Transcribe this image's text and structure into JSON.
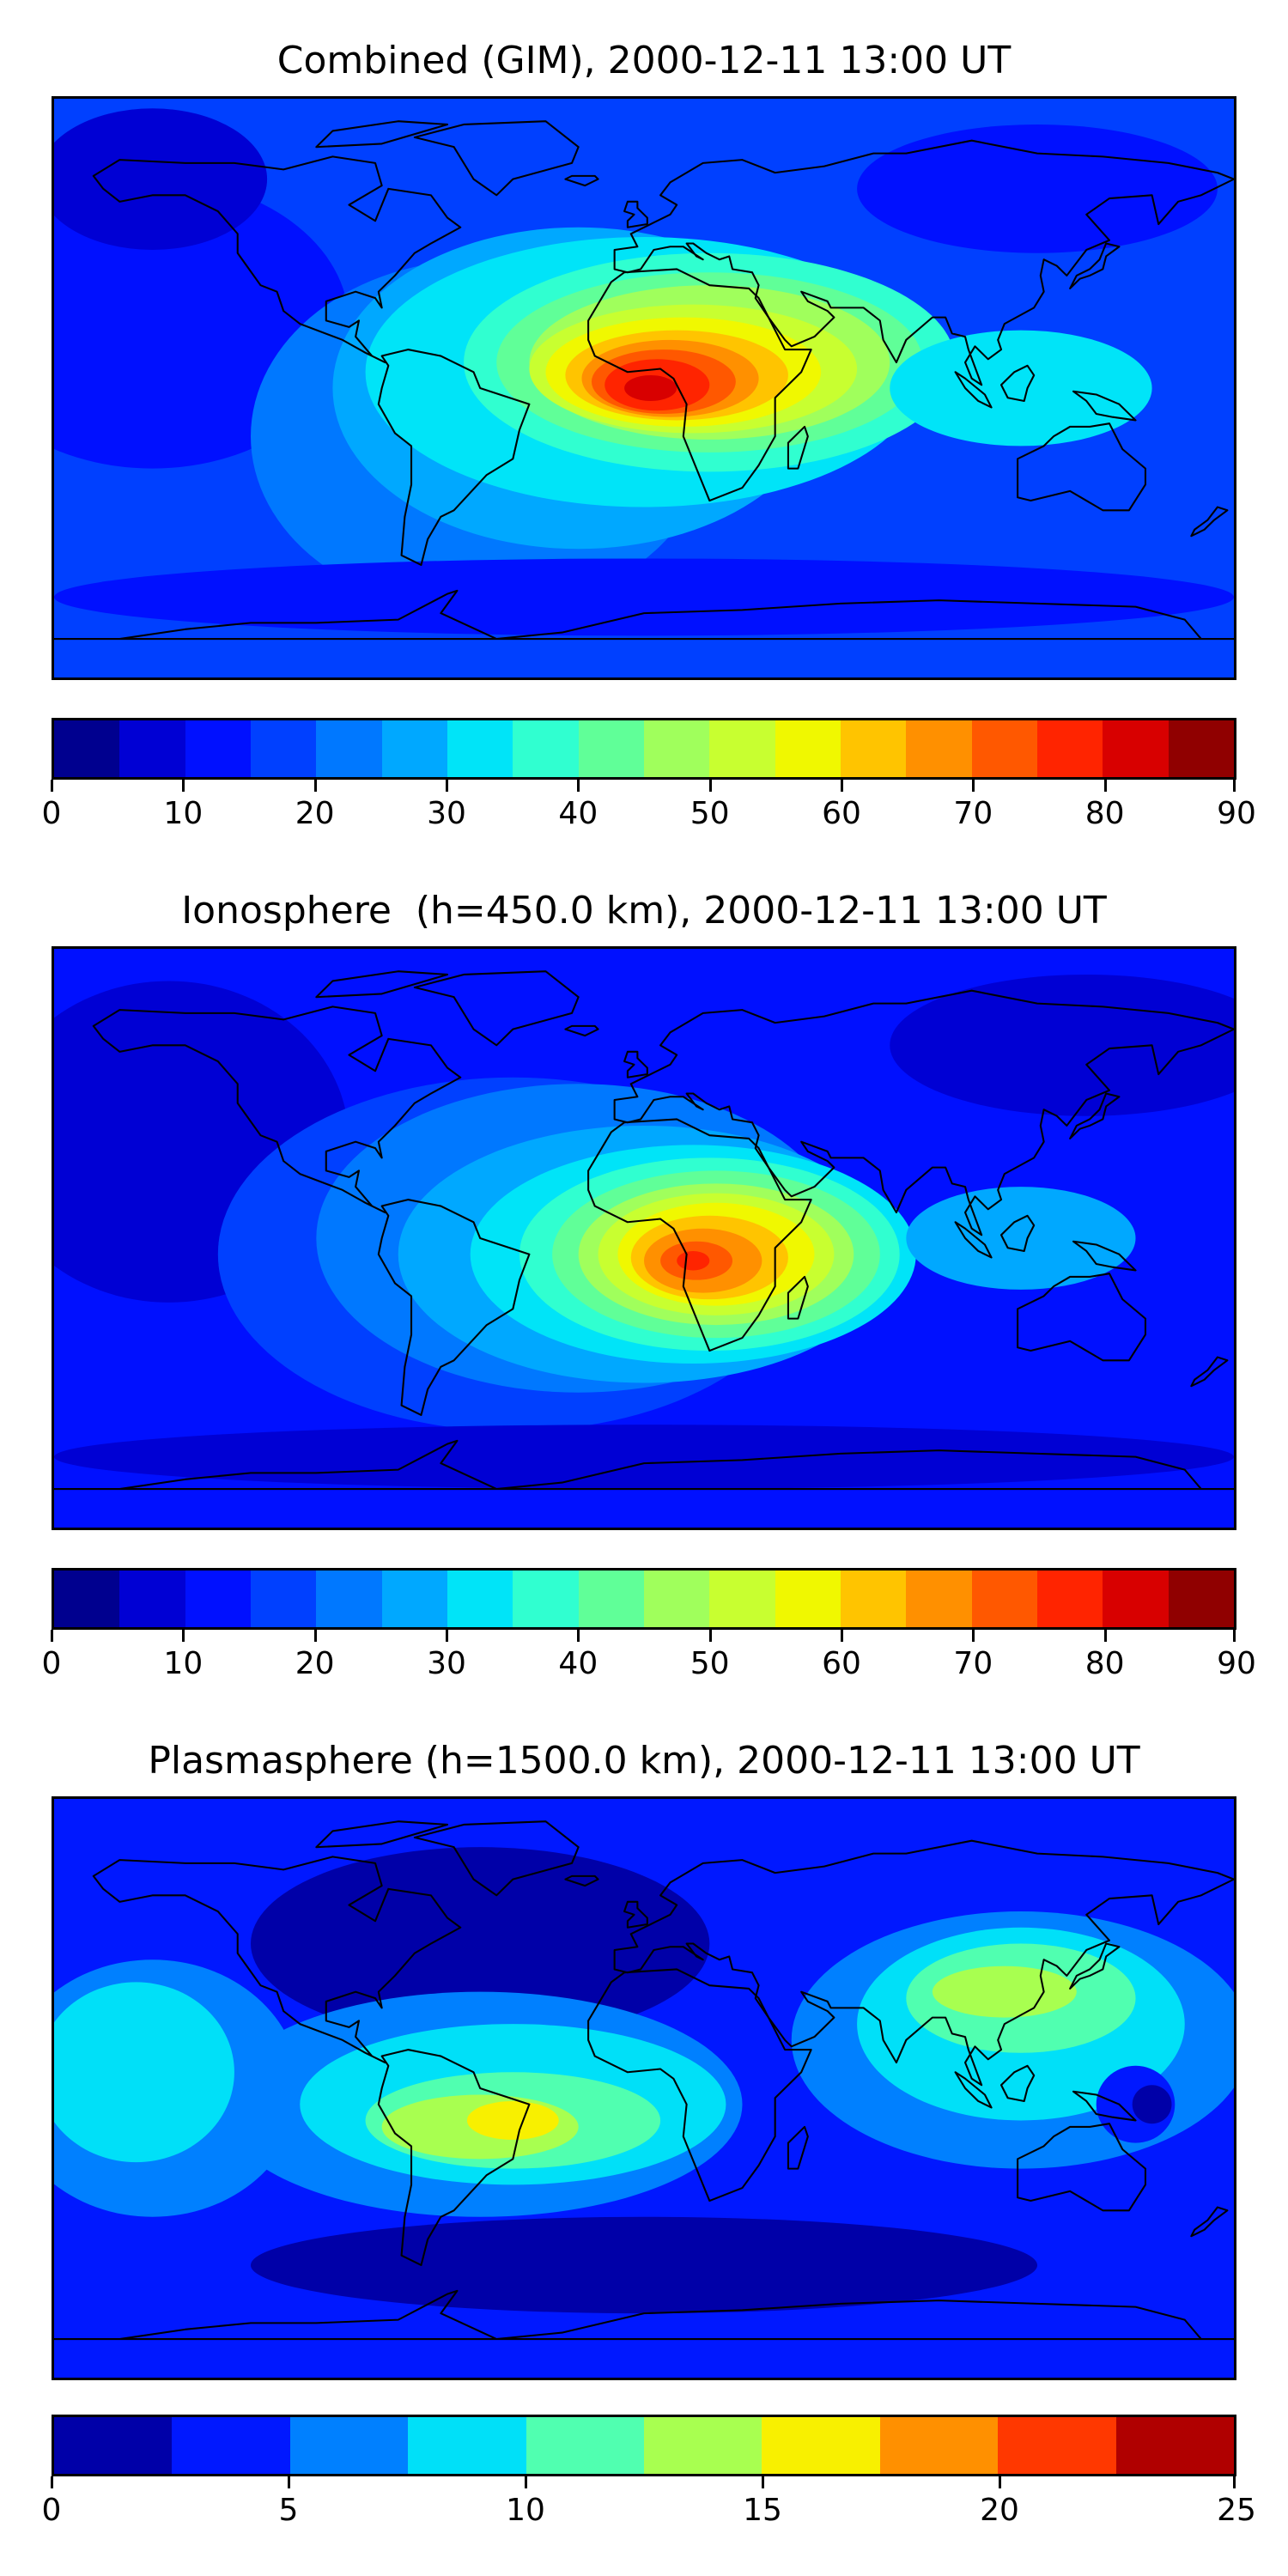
{
  "panels": [
    {
      "title": "Combined (GIM), 2000-12-11 13:00 UT",
      "colorbar": {
        "min": 0,
        "max": 90,
        "ticks": [
          "0",
          "10",
          "20",
          "30",
          "40",
          "50",
          "60",
          "70",
          "80",
          "90"
        ],
        "colors": [
          "#00008f",
          "#0000d4",
          "#0010ff",
          "#0040ff",
          "#0078ff",
          "#00a8ff",
          "#00e4f8",
          "#30ffd0",
          "#60ff98",
          "#a0ff5c",
          "#c8ff30",
          "#f0f800",
          "#ffc400",
          "#ff9000",
          "#ff5800",
          "#ff2400",
          "#d80000",
          "#900000"
        ]
      },
      "field": {
        "background_level": 3,
        "blobs": [
          {
            "level": 2,
            "lon": -150,
            "lat": 20,
            "rx": 60,
            "ry": 45
          },
          {
            "level": 1,
            "lon": -150,
            "lat": 65,
            "rx": 35,
            "ry": 22
          },
          {
            "level": 2,
            "lon": 120,
            "lat": 62,
            "rx": 55,
            "ry": 20
          },
          {
            "level": 4,
            "lon": -50,
            "lat": -15,
            "rx": 70,
            "ry": 55
          },
          {
            "level": 5,
            "lon": -20,
            "lat": 0,
            "rx": 75,
            "ry": 50
          },
          {
            "level": 6,
            "lon": 0,
            "lat": 5,
            "rx": 85,
            "ry": 42
          },
          {
            "level": 7,
            "lon": 20,
            "lat": 8,
            "rx": 75,
            "ry": 34
          },
          {
            "level": 8,
            "lon": 20,
            "lat": 8,
            "rx": 65,
            "ry": 28
          },
          {
            "level": 9,
            "lon": 20,
            "lat": 8,
            "rx": 55,
            "ry": 24
          },
          {
            "level": 10,
            "lon": 15,
            "lat": 6,
            "rx": 50,
            "ry": 20
          },
          {
            "level": 11,
            "lon": 12,
            "lat": 5,
            "rx": 42,
            "ry": 17
          },
          {
            "level": 12,
            "lon": 10,
            "lat": 4,
            "rx": 34,
            "ry": 14
          },
          {
            "level": 13,
            "lon": 8,
            "lat": 3,
            "rx": 27,
            "ry": 12
          },
          {
            "level": 14,
            "lon": 6,
            "lat": 2,
            "rx": 22,
            "ry": 10
          },
          {
            "level": 15,
            "lon": 4,
            "lat": 1,
            "rx": 16,
            "ry": 8
          },
          {
            "level": 16,
            "lon": 2,
            "lat": 0,
            "rx": 8,
            "ry": 4
          },
          {
            "level": 6,
            "lon": 115,
            "lat": 0,
            "rx": 40,
            "ry": 18
          },
          {
            "level": 2,
            "lon": 0,
            "lat": -65,
            "rx": 180,
            "ry": 12
          }
        ]
      }
    },
    {
      "title": "Ionosphere  (h=450.0 km), 2000-12-11 13:00 UT",
      "colorbar": {
        "min": 0,
        "max": 90,
        "ticks": [
          "0",
          "10",
          "20",
          "30",
          "40",
          "50",
          "60",
          "70",
          "80",
          "90"
        ],
        "colors": [
          "#00008f",
          "#0000d4",
          "#0010ff",
          "#0040ff",
          "#0078ff",
          "#00a8ff",
          "#00e4f8",
          "#30ffd0",
          "#60ff98",
          "#a0ff5c",
          "#c8ff30",
          "#f0f800",
          "#ffc400",
          "#ff9000",
          "#ff5800",
          "#ff2400",
          "#d80000",
          "#900000"
        ]
      },
      "field": {
        "background_level": 2,
        "blobs": [
          {
            "level": 1,
            "lon": -145,
            "lat": 30,
            "rx": 55,
            "ry": 50
          },
          {
            "level": 1,
            "lon": 135,
            "lat": 60,
            "rx": 60,
            "ry": 22
          },
          {
            "level": 3,
            "lon": -40,
            "lat": -5,
            "rx": 90,
            "ry": 55
          },
          {
            "level": 4,
            "lon": -20,
            "lat": 0,
            "rx": 80,
            "ry": 48
          },
          {
            "level": 5,
            "lon": 0,
            "lat": -5,
            "rx": 75,
            "ry": 40
          },
          {
            "level": 6,
            "lon": 15,
            "lat": -5,
            "rx": 68,
            "ry": 34
          },
          {
            "level": 7,
            "lon": 20,
            "lat": -5,
            "rx": 58,
            "ry": 30
          },
          {
            "level": 8,
            "lon": 22,
            "lat": -5,
            "rx": 50,
            "ry": 26
          },
          {
            "level": 9,
            "lon": 22,
            "lat": -5,
            "rx": 42,
            "ry": 22
          },
          {
            "level": 10,
            "lon": 22,
            "lat": -5,
            "rx": 36,
            "ry": 19
          },
          {
            "level": 11,
            "lon": 22,
            "lat": -5,
            "rx": 30,
            "ry": 16
          },
          {
            "level": 12,
            "lon": 20,
            "lat": -6,
            "rx": 24,
            "ry": 13
          },
          {
            "level": 13,
            "lon": 18,
            "lat": -7,
            "rx": 18,
            "ry": 10
          },
          {
            "level": 14,
            "lon": 16,
            "lat": -7,
            "rx": 11,
            "ry": 6
          },
          {
            "level": 15,
            "lon": 15,
            "lat": -7,
            "rx": 5,
            "ry": 3
          },
          {
            "level": 5,
            "lon": 115,
            "lat": 0,
            "rx": 35,
            "ry": 16
          },
          {
            "level": 1,
            "lon": 0,
            "lat": -68,
            "rx": 180,
            "ry": 10
          }
        ]
      }
    },
    {
      "title": "Plasmasphere (h=1500.0 km), 2000-12-11 13:00 UT",
      "colorbar": {
        "min": 0,
        "max": 25,
        "ticks": [
          "0",
          "5",
          "10",
          "15",
          "20",
          "25"
        ],
        "colors": [
          "#0000a8",
          "#0018ff",
          "#0080ff",
          "#00e0f8",
          "#50ffb0",
          "#a8ff50",
          "#f8f000",
          "#ff9000",
          "#ff3800",
          "#b00000"
        ]
      },
      "field": {
        "background_level": 1,
        "blobs": [
          {
            "level": 0,
            "lon": -50,
            "lat": 45,
            "rx": 70,
            "ry": 30
          },
          {
            "level": 0,
            "lon": 0,
            "lat": -55,
            "rx": 120,
            "ry": 15
          },
          {
            "level": 2,
            "lon": -150,
            "lat": 0,
            "rx": 45,
            "ry": 40
          },
          {
            "level": 2,
            "lon": -50,
            "lat": -5,
            "rx": 80,
            "ry": 35
          },
          {
            "level": 2,
            "lon": 115,
            "lat": 15,
            "rx": 70,
            "ry": 40
          },
          {
            "level": 3,
            "lon": -155,
            "lat": 5,
            "rx": 30,
            "ry": 28
          },
          {
            "level": 3,
            "lon": -40,
            "lat": -5,
            "rx": 65,
            "ry": 25
          },
          {
            "level": 3,
            "lon": 115,
            "lat": 20,
            "rx": 50,
            "ry": 30
          },
          {
            "level": 4,
            "lon": -40,
            "lat": -10,
            "rx": 45,
            "ry": 15
          },
          {
            "level": 4,
            "lon": 115,
            "lat": 28,
            "rx": 35,
            "ry": 17
          },
          {
            "level": 5,
            "lon": -50,
            "lat": -12,
            "rx": 30,
            "ry": 10
          },
          {
            "level": 5,
            "lon": 110,
            "lat": 30,
            "rx": 22,
            "ry": 8
          },
          {
            "level": 6,
            "lon": -40,
            "lat": -10,
            "rx": 14,
            "ry": 6
          },
          {
            "level": 1,
            "lon": 150,
            "lat": -5,
            "rx": 12,
            "ry": 12
          },
          {
            "level": 0,
            "lon": 155,
            "lat": -5,
            "rx": 6,
            "ry": 6
          }
        ]
      }
    }
  ]
}
